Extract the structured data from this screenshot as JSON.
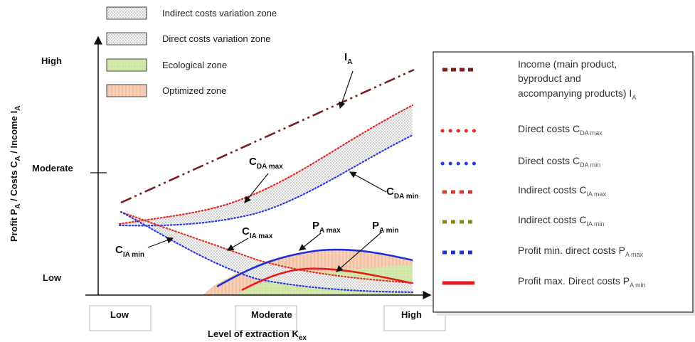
{
  "zones": {
    "indirect": "Indirect costs variation zone",
    "direct": "Direct costs variation zone",
    "ecological": "Ecological zone",
    "optimized": "Optimized zone"
  },
  "y_axis": {
    "title_main": "Profit P",
    "title_sub1": "A",
    "title_mid1": " / Costs C",
    "title_sub2": "A",
    "title_mid2": " / Income I",
    "title_sub3": "A",
    "levels": [
      "High",
      "Moderate",
      "Low"
    ]
  },
  "x_axis": {
    "title_main": "Level of extraction K",
    "title_sub": "ex",
    "levels": [
      "Low",
      "Moderate",
      "High"
    ]
  },
  "curve_labels": {
    "ia": {
      "main": "I",
      "sub": "A"
    },
    "cda_max": {
      "main": "C",
      "sub": "DA max"
    },
    "cda_min": {
      "main": "C",
      "sub": "DA min"
    },
    "cia_max": {
      "main": "C",
      "sub": "IA max"
    },
    "cia_min": {
      "main": "C",
      "sub": "IA min"
    },
    "pa_max": {
      "main": "P",
      "sub": "A max"
    },
    "pa_min": {
      "main": "P",
      "sub": "A min"
    }
  },
  "legend": {
    "income_line1": "Income (main product,",
    "income_line2": "byproduct      and",
    "income_line3_main": "accompanying products) I",
    "income_line3_sub": "A",
    "cda_max_main": "Direct costs C",
    "cda_max_sub": "DA max",
    "cda_min_main": "Direct costs C",
    "cda_min_sub": "DA min",
    "cia_max_main": "Indirect costs C",
    "cia_max_sub": "IA max",
    "cia_min_main": "Indirect costs C",
    "cia_min_sub": "IA min",
    "pa_max_main": "Profit  min. direct costs P",
    "pa_max_sub": "A max",
    "pa_min_main": "Profit  max. Direct costs P",
    "pa_min_sub": "A min"
  },
  "colors": {
    "income": "#7a1f1f",
    "direct_max": "#e02a2a",
    "direct_min": "#2a3be0",
    "indirect_max": "#d83a2a",
    "indirect_min": "#8a8a10",
    "profit_max": "#1e2fd8",
    "profit_min": "#e01c1c",
    "ecological": "#cfe6a4",
    "optimized": "#f6c9ad"
  }
}
